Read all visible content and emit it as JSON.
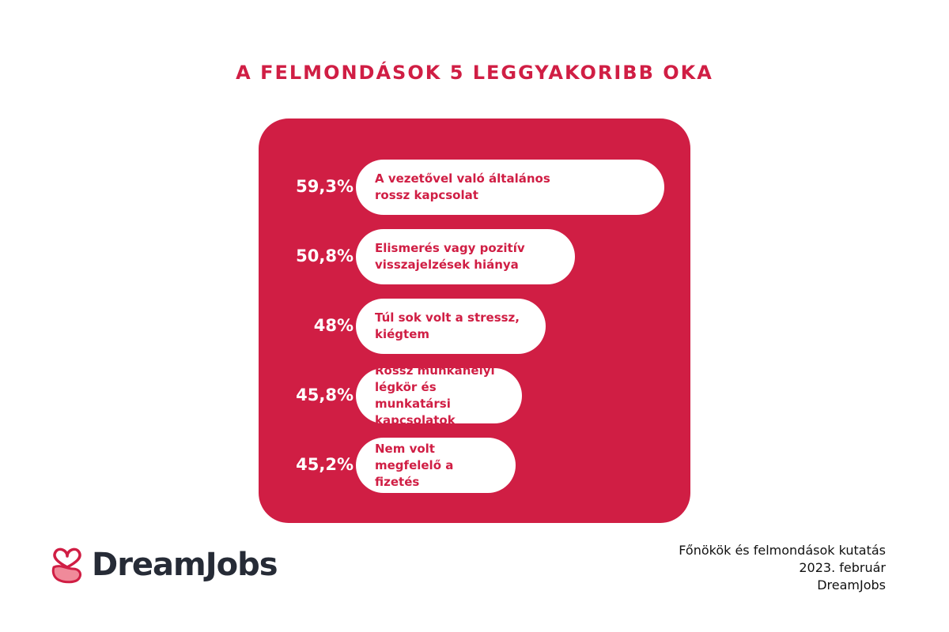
{
  "colors": {
    "brand": "#d01e44",
    "panel": "#d01e44",
    "pill": "#ffffff",
    "logo_text": "#262b36"
  },
  "chart_data": {
    "type": "bar",
    "title": "A FELMONDÁSOK 5 LEGGYAKORIBB OKA",
    "categories": [
      "A vezetővel való általános\nrossz kapcsolat",
      "Elismerés vagy pozitív\nvisszajelzések hiánya",
      "Túl sok volt a stressz, kiégtem",
      "Rossz munkahelyi légkör és\nmunkatársi kapcsolatok",
      "Nem volt megfelelő a fizetés"
    ],
    "values": [
      59.3,
      50.8,
      48,
      45.8,
      45.2
    ],
    "value_labels": [
      "59,3%",
      "50,8%",
      "48%",
      "45,8%",
      "45,2%"
    ],
    "unit": "%"
  },
  "footer": {
    "logo_name": "DreamJobs",
    "logo_icon": "heart-hand-icon",
    "source_lines": [
      "Főnökök és felmondások kutatás",
      "2023. február",
      "DreamJobs"
    ]
  }
}
